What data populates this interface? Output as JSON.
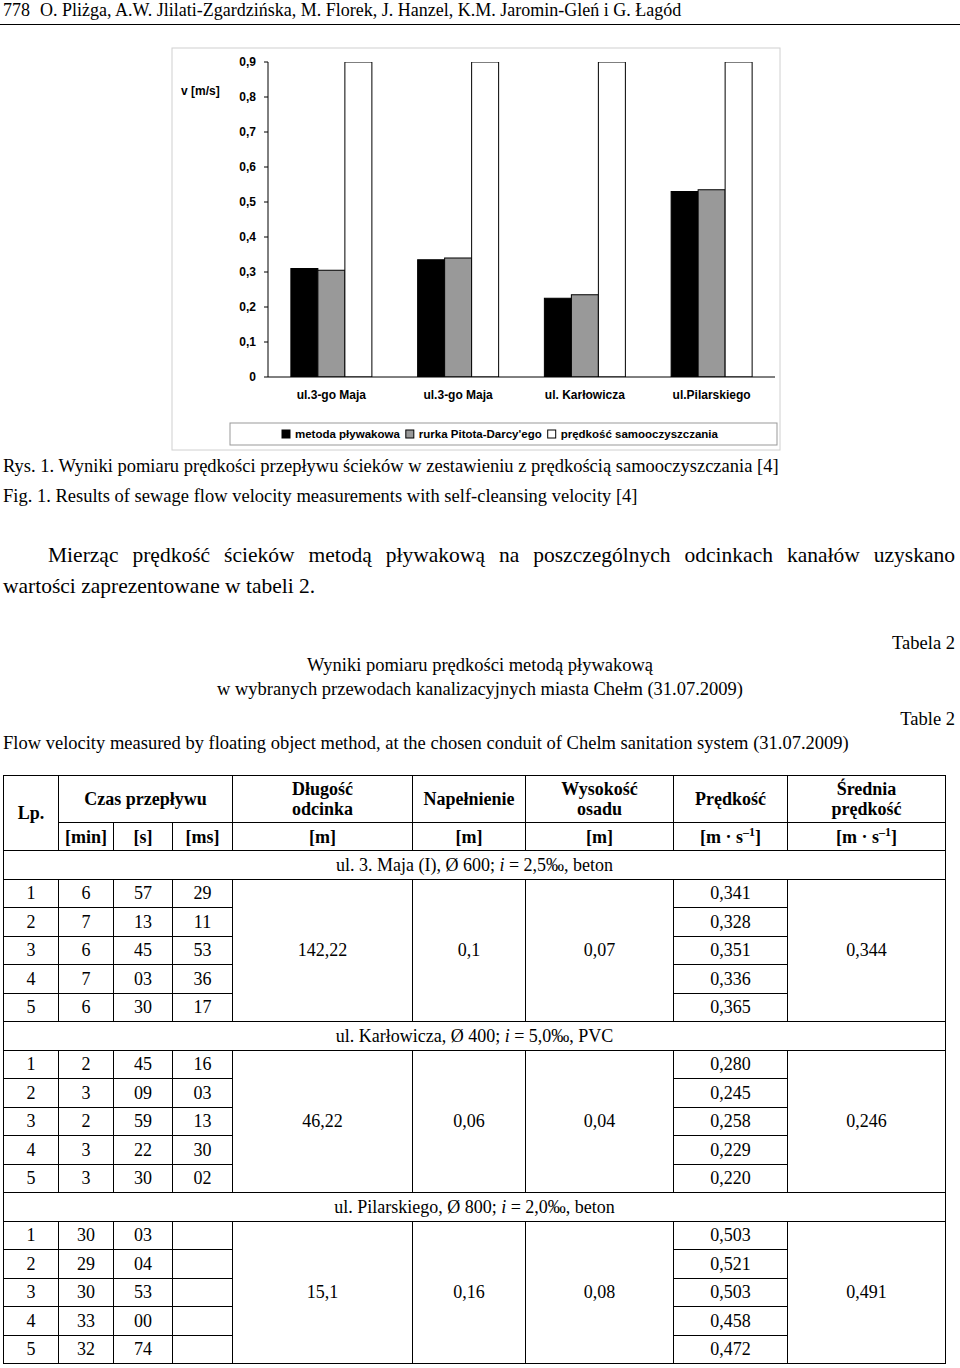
{
  "header": {
    "page_number": "778",
    "authors": "O. Pliżga, A.W. Jlilati-Zgardzińska, M. Florek, J. Hanzel, K.M. Jaromin-Gleń i G. Łagód"
  },
  "chart_data": {
    "type": "bar",
    "y_label": "v [m/s]",
    "categories": [
      "ul.3-go Maja",
      "ul.3-go Maja",
      "ul. Karłowicza",
      "ul.Pilarskiego"
    ],
    "series": [
      {
        "name": "metoda pływakowa",
        "color": "#000000",
        "values": [
          0.31,
          0.335,
          0.225,
          0.53
        ]
      },
      {
        "name": "rurka Pitota-Darcy'ego",
        "color": "#999999",
        "values": [
          0.305,
          0.34,
          0.235,
          0.535
        ]
      },
      {
        "name": "prędkość samooczyszczania",
        "color": "#ffffff",
        "values": [
          0.9,
          0.9,
          0.9,
          0.9
        ]
      }
    ],
    "ylim": [
      0,
      0.9
    ],
    "yticks": [
      0,
      {
        "value": 0.1,
        "label": "0,1"
      },
      {
        "value": 0.2,
        "label": "0,2"
      },
      {
        "value": 0.3,
        "label": "0,3"
      },
      {
        "value": 0.4,
        "label": "0,4"
      },
      {
        "value": 0.5,
        "label": "0,5"
      },
      {
        "value": 0.6,
        "label": "0,6"
      },
      {
        "value": 0.7,
        "label": "0,7"
      },
      {
        "value": 0.8,
        "label": "0,8"
      },
      {
        "value": 0.9,
        "label": "0,9"
      }
    ],
    "grid": false,
    "legend": "bottom"
  },
  "figure": {
    "caption_pl": "Rys. 1. Wyniki pomiaru prędkości przepływu ścieków w zestawieniu z prędkością samooczyszczania [4]",
    "caption_en": "Fig. 1. Results of sewage flow velocity measurements with self-cleansing velocity [4]"
  },
  "paragraph": "Mierząc prędkość ścieków metodą pływakową na poszczególnych odcinkach kanałów uzyskano wartości zaprezentowane w tabeli 2.",
  "table_caption": {
    "label_pl": "Tabela 2",
    "title_pl": [
      "Wyniki pomiaru prędkości metodą pływakową",
      "w wybranych przewodach kanalizacyjnych miasta Chełm (31.07.2009)"
    ],
    "label_en": "Table 2",
    "title_en": "Flow velocity measured by floating object method, at the chosen conduit of Chelm sanitation system (31.07.2009)"
  },
  "table": {
    "header": [
      [
        "Lp."
      ],
      [
        "Czas przepływu"
      ],
      [
        "Długość",
        "odcinka"
      ],
      [
        "Napełnienie"
      ],
      [
        "Wysokość",
        "osadu"
      ],
      [
        "Prędkość"
      ],
      [
        "Średnia",
        "prędkość"
      ]
    ],
    "units": [
      "[min]",
      "[s]",
      "[ms]",
      "[m]",
      "[m]",
      "[m]",
      {
        "pre": "[m · s",
        "sup": "–1",
        "post": "]"
      },
      {
        "pre": "[m · s",
        "sup": "–1",
        "post": "]"
      }
    ],
    "sections": [
      {
        "title": {
          "pre": "ul. 3. Maja (I), Ø 600; ",
          "italic": "i",
          "post": " = 2,5‰, beton"
        },
        "length": "142,22",
        "filling": "0,1",
        "sediment": "0,07",
        "mean": "0,344",
        "rows": [
          [
            "1",
            "6",
            "57",
            "29",
            "0,341"
          ],
          [
            "2",
            "7",
            "13",
            "11",
            "0,328"
          ],
          [
            "3",
            "6",
            "45",
            "53",
            "0,351"
          ],
          [
            "4",
            "7",
            "03",
            "36",
            "0,336"
          ],
          [
            "5",
            "6",
            "30",
            "17",
            "0,365"
          ]
        ]
      },
      {
        "title": {
          "pre": "ul. Karłowicza, Ø 400; ",
          "italic": "i",
          "post": " = 5,0‰, PVC"
        },
        "length": "46,22",
        "filling": "0,06",
        "sediment": "0,04",
        "mean": "0,246",
        "rows": [
          [
            "1",
            "2",
            "45",
            "16",
            "0,280"
          ],
          [
            "2",
            "3",
            "09",
            "03",
            "0,245"
          ],
          [
            "3",
            "2",
            "59",
            "13",
            "0,258"
          ],
          [
            "4",
            "3",
            "22",
            "30",
            "0,229"
          ],
          [
            "5",
            "3",
            "30",
            "02",
            "0,220"
          ]
        ]
      },
      {
        "title": {
          "pre": "ul. Pilarskiego, Ø 800; ",
          "italic": "i",
          "post": " = 2,0‰, beton"
        },
        "length": "15,1",
        "filling": "0,16",
        "sediment": "0,08",
        "mean": "0,491",
        "rows": [
          [
            "1",
            "30",
            "03",
            "0,503"
          ],
          [
            "2",
            "29",
            "04",
            "0,521"
          ],
          [
            "3",
            "30",
            "53",
            "0,503"
          ],
          [
            "4",
            "33",
            "00",
            "0,458"
          ],
          [
            "5",
            "32",
            "74",
            "0,472"
          ]
        ]
      }
    ]
  }
}
